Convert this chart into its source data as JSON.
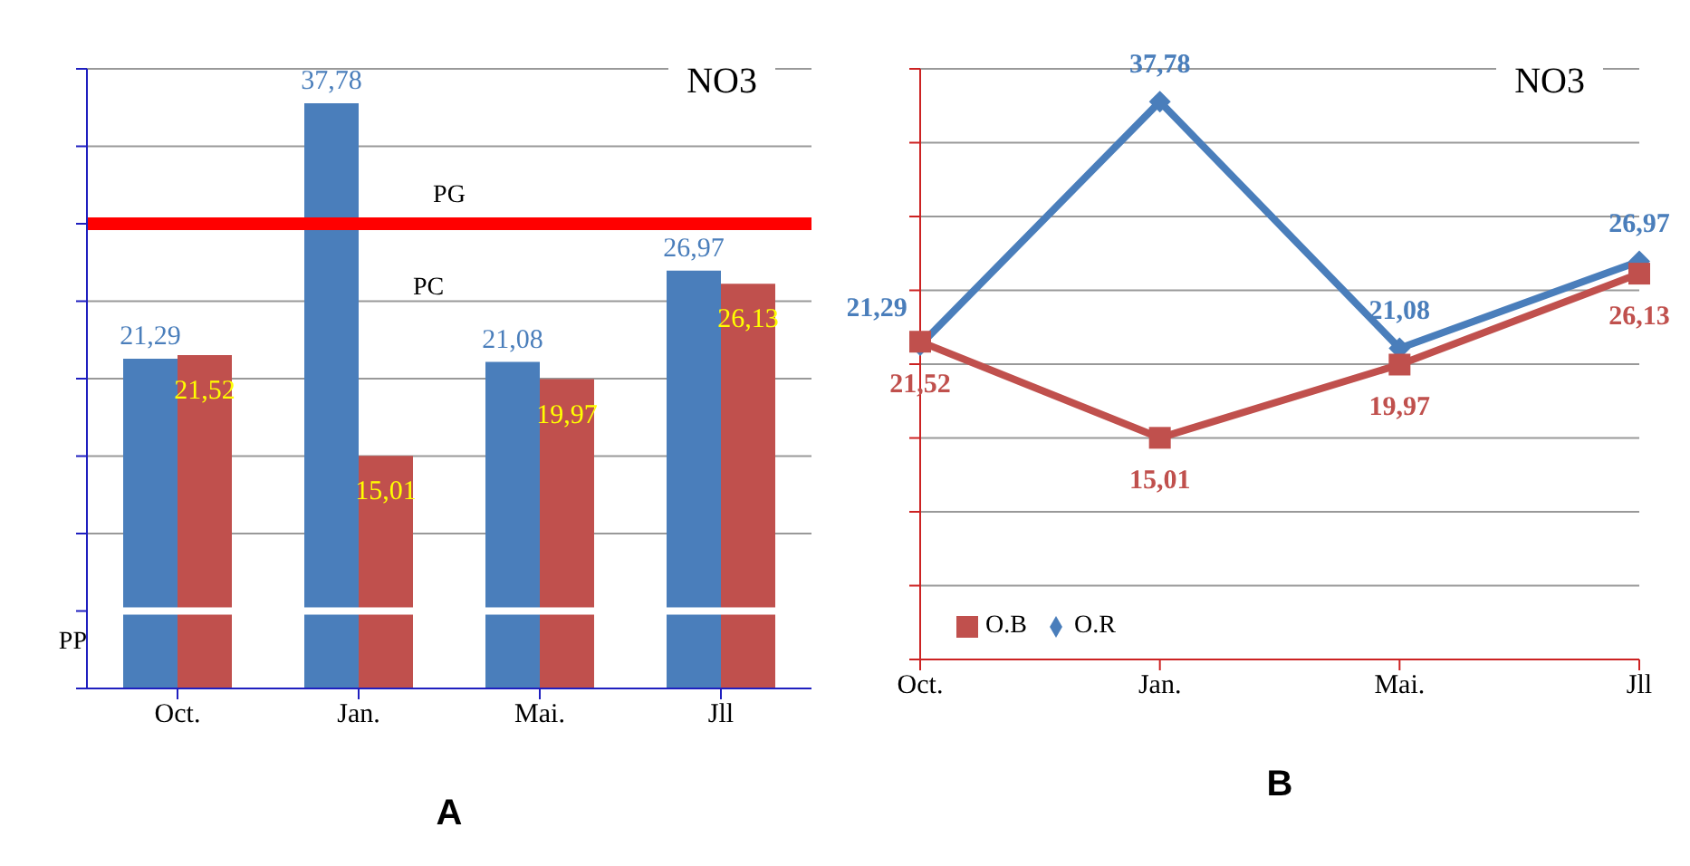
{
  "chart_data": [
    {
      "type": "bar",
      "title": "NO3",
      "xlabel": "A",
      "categories": [
        "Oct.",
        "Jan.",
        "Mai.",
        "Jll"
      ],
      "series": [
        {
          "color": "#4a7ebb",
          "values": [
            21.29,
            37.78,
            21.08,
            26.97
          ],
          "value_labels": [
            "21,29",
            "37,78",
            "21,08",
            "26,97"
          ]
        },
        {
          "color": "#c0504d",
          "values": [
            21.52,
            15.01,
            19.97,
            26.13
          ],
          "value_labels": [
            "21,52",
            "15,01",
            "19,97",
            "26,13"
          ]
        }
      ],
      "ylim": [
        0,
        40
      ],
      "tick_labels": "x",
      "grid": "y",
      "legend": false,
      "ref_lines": [
        {
          "axis": "y",
          "value": 30,
          "label": "PG",
          "color": "#ff0000"
        },
        {
          "axis": "y",
          "value": 5,
          "label": "PP",
          "color": "#ffffff"
        }
      ],
      "annotations": [
        {
          "text": "PC",
          "x": "Jan.",
          "y": 26
        }
      ]
    },
    {
      "type": "line",
      "title": "NO3",
      "xlabel": "B",
      "categories": [
        "Oct.",
        "Jan.",
        "Mai.",
        "Jll"
      ],
      "series": [
        {
          "name": "O.R",
          "color": "#4a7ebb",
          "marker": "diamond",
          "values": [
            21.29,
            37.78,
            21.08,
            26.97
          ],
          "value_labels": [
            "21,29",
            "37,78",
            "21,08",
            "26,97"
          ]
        },
        {
          "name": "O.B",
          "color": "#c0504d",
          "marker": "square",
          "values": [
            21.52,
            15.01,
            19.97,
            26.13
          ],
          "value_labels": [
            "21,52",
            "15,01",
            "19,97",
            "26,13"
          ]
        }
      ],
      "ylim": [
        0,
        40
      ],
      "tick_labels": "x",
      "grid": "y",
      "legend": "bottom left"
    }
  ]
}
